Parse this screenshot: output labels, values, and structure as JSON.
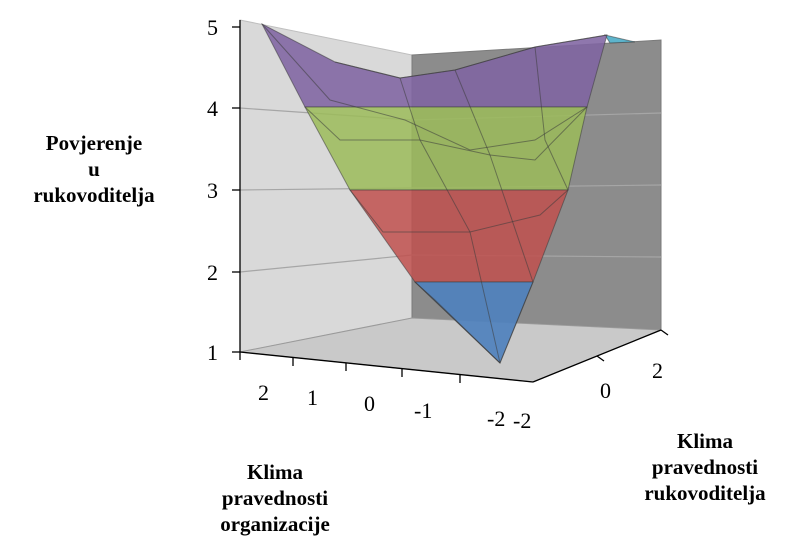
{
  "chart_data": {
    "type": "surface",
    "zlabel": "Povjerenje\nu\nrukovoditelja",
    "xlabel": "Klima\npravednosti\norganizacije",
    "ylabel": "Klima\npravednosti\nrukovoditelja",
    "z_ticks": [
      "1",
      "2",
      "3",
      "4",
      "5"
    ],
    "x_ticks": [
      "2",
      "1",
      "0",
      "-1",
      "-2"
    ],
    "y_ticks": [
      "-2",
      "0",
      "2"
    ],
    "zlim": [
      1,
      5
    ],
    "band_colors": {
      "1-2": "#4f81bd",
      "2-3": "#c0504d",
      "3-4": "#9bbb59",
      "4-5": "#8064a2",
      "5-6": "#4bacc6"
    },
    "grid": true,
    "surface_front_edge": [
      {
        "x": 2,
        "y": -2,
        "z": 5.0
      },
      {
        "x": 1,
        "y": -2,
        "z": 4.0
      },
      {
        "x": 0,
        "y": -2,
        "z": 3.0
      },
      {
        "x": -1,
        "y": -2,
        "z": 1.8
      },
      {
        "x": -2,
        "y": -2,
        "z": 1.0
      }
    ],
    "surface_back_edge": [
      {
        "x": 2,
        "y": 2,
        "z": 4.4
      },
      {
        "x": 1,
        "y": 2,
        "z": 4.3
      },
      {
        "x": 0,
        "y": 2,
        "z": 4.5
      },
      {
        "x": -1,
        "y": 2,
        "z": 4.6
      },
      {
        "x": -2,
        "y": 2,
        "z": 5.0
      }
    ]
  }
}
